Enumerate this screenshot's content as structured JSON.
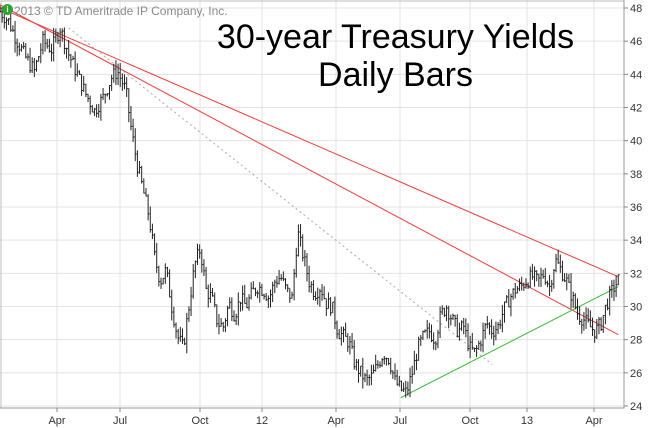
{
  "copyright": "2013 © TD Ameritrade IP Company, Inc.",
  "badge": "i",
  "title_line1": "30-year Treasury Yields",
  "title_line2": "Daily Bars",
  "chart_data": {
    "type": "line",
    "title": "30-year Treasury Yields Daily Bars",
    "ylim": [
      24,
      48
    ],
    "y_ticks": [
      24,
      26,
      28,
      30,
      32,
      34,
      36,
      38,
      40,
      42,
      44,
      46,
      48
    ],
    "x_ticks": [
      "Apr",
      "Jul",
      "Oct",
      "12",
      "Apr",
      "Jul",
      "Oct",
      "13",
      "Apr"
    ],
    "grid": true,
    "colors": {
      "price": "#222222",
      "resistance": "#ee3b3b",
      "support": "#33bb33",
      "dotted": "#aaaaaa"
    },
    "series": [
      {
        "values": [
          [
            0,
            47.8
          ],
          [
            3,
            47.2
          ],
          [
            6,
            46.0
          ],
          [
            9,
            45.0
          ],
          [
            12,
            44.2
          ],
          [
            15,
            46.0
          ],
          [
            18,
            45.5
          ],
          [
            21,
            46.8
          ],
          [
            24,
            45.2
          ],
          [
            27,
            44.0
          ],
          [
            30,
            42.8
          ],
          [
            33,
            41.8
          ],
          [
            36,
            42.6
          ],
          [
            39,
            43.8
          ],
          [
            41,
            44.2
          ],
          [
            44,
            43.0
          ],
          [
            46,
            40.5
          ],
          [
            48,
            38.5
          ],
          [
            50,
            37.0
          ],
          [
            52,
            35.5
          ],
          [
            54,
            33.0
          ],
          [
            56,
            31.5
          ],
          [
            58,
            32.2
          ],
          [
            60,
            30.0
          ],
          [
            62,
            28.2
          ],
          [
            64,
            27.5
          ],
          [
            66,
            30.0
          ],
          [
            68,
            32.5
          ],
          [
            70,
            33.5
          ],
          [
            72,
            31.0
          ],
          [
            74,
            30.5
          ],
          [
            76,
            29.0
          ],
          [
            78,
            28.8
          ],
          [
            80,
            30.2
          ],
          [
            82,
            29.5
          ],
          [
            84,
            30.5
          ],
          [
            86,
            30.0
          ],
          [
            88,
            30.8
          ],
          [
            90,
            31.2
          ],
          [
            92,
            31.0
          ],
          [
            94,
            30.5
          ],
          [
            96,
            31.5
          ],
          [
            98,
            31.8
          ],
          [
            100,
            31.0
          ],
          [
            102,
            30.5
          ],
          [
            104,
            34.5
          ],
          [
            106,
            33.0
          ],
          [
            108,
            31.5
          ],
          [
            110,
            30.8
          ],
          [
            112,
            31.2
          ],
          [
            114,
            30.2
          ],
          [
            116,
            30.0
          ],
          [
            118,
            28.5
          ],
          [
            120,
            28.2
          ],
          [
            122,
            27.8
          ],
          [
            124,
            26.5
          ],
          [
            126,
            26.0
          ],
          [
            128,
            25.5
          ],
          [
            130,
            25.8
          ],
          [
            132,
            26.5
          ],
          [
            134,
            27.2
          ],
          [
            136,
            26.8
          ],
          [
            138,
            25.5
          ],
          [
            140,
            25.0
          ],
          [
            142,
            24.8
          ],
          [
            144,
            26.0
          ],
          [
            146,
            27.5
          ],
          [
            148,
            28.2
          ],
          [
            150,
            28.5
          ],
          [
            152,
            28.0
          ],
          [
            154,
            29.5
          ],
          [
            156,
            30.0
          ],
          [
            158,
            29.2
          ],
          [
            160,
            28.5
          ],
          [
            162,
            28.8
          ],
          [
            164,
            27.5
          ],
          [
            166,
            27.2
          ],
          [
            168,
            28.0
          ],
          [
            170,
            29.0
          ],
          [
            172,
            28.5
          ],
          [
            174,
            28.8
          ],
          [
            176,
            29.8
          ],
          [
            178,
            30.5
          ],
          [
            180,
            31.0
          ],
          [
            182,
            31.2
          ],
          [
            184,
            31.6
          ],
          [
            186,
            31.8
          ],
          [
            188,
            31.5
          ],
          [
            190,
            32.0
          ],
          [
            192,
            31.2
          ],
          [
            194,
            32.8
          ],
          [
            196,
            32.2
          ],
          [
            198,
            31.5
          ],
          [
            200,
            30.5
          ],
          [
            202,
            29.5
          ],
          [
            204,
            29.2
          ],
          [
            206,
            28.8
          ],
          [
            208,
            28.5
          ],
          [
            210,
            29.0
          ],
          [
            212,
            30.2
          ],
          [
            214,
            31.0
          ],
          [
            216,
            31.6
          ]
        ]
      }
    ],
    "trendlines": [
      {
        "style": "resistance",
        "from": [
          0,
          48.0
        ],
        "to": [
          216,
          31.8
        ]
      },
      {
        "style": "resistance",
        "from": [
          0,
          48.2
        ],
        "to": [
          216,
          28.3
        ]
      },
      {
        "style": "support",
        "from": [
          140,
          24.5
        ],
        "to": [
          216,
          31.2
        ]
      },
      {
        "style": "dotted",
        "from": [
          24,
          46.8
        ],
        "to": [
          172,
          26.5
        ]
      }
    ]
  }
}
